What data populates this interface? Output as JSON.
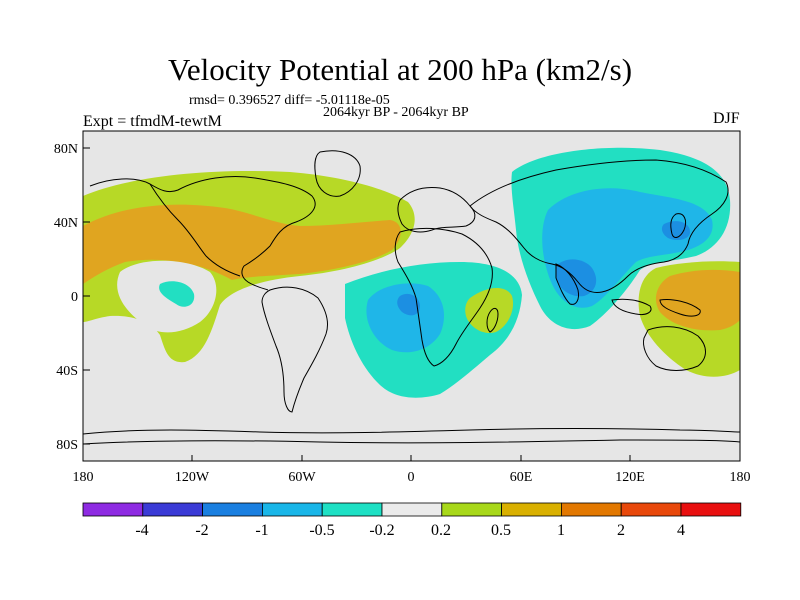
{
  "title": "Velocity Potential at 200 hPa (km2/s)",
  "stats": "rmsd= 0.396527 diff= -5.01118e-05",
  "period": "2064kyr BP - 2064kyr BP",
  "experiment": "Expt = tfmdM-tewtM",
  "season": "DJF",
  "axes": {
    "lat_labels": [
      "80N",
      "40N",
      "0",
      "40S",
      "80S"
    ],
    "lon_labels": [
      "180",
      "120W",
      "60W",
      "0",
      "60E",
      "120E",
      "180"
    ]
  },
  "colorbar": {
    "labels": [
      "-4",
      "-2",
      "-1",
      "-0.5",
      "-0.2",
      "0.2",
      "0.5",
      "1",
      "2",
      "4"
    ],
    "colors": [
      "#8e2be2",
      "#3b3bd6",
      "#1a7fe0",
      "#19b6e8",
      "#1ee0c4",
      "#ebebeb",
      "#a8d81a",
      "#d9b000",
      "#e27800",
      "#e8480b",
      "#e80f0f"
    ]
  },
  "map_colors": {
    "background": "#e6e6e6",
    "positive_weak": "#b7d926",
    "positive_moderate": "#e0a520",
    "negative_weak": "#22dfc2",
    "negative_moderate": "#1fb6e8",
    "negative_strong": "#1c8fe2"
  }
}
